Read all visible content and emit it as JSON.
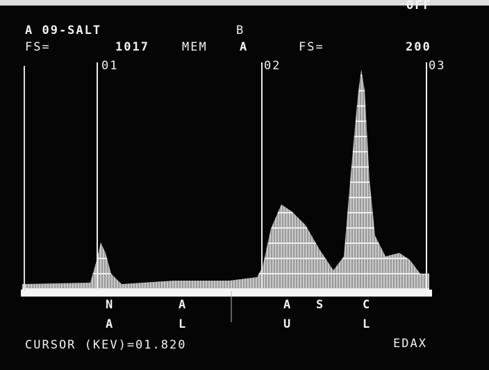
{
  "screen": {
    "status": {
      "right": "OFF"
    },
    "header": {
      "memory_a": "A 09-SALT",
      "memory_b": "B",
      "fs_label_1": "FS=",
      "fs_value_1": "1017",
      "mem_label": "MEM",
      "mem_value": "A",
      "fs_label_2": "FS=",
      "fs_value_2": "200"
    },
    "markers": [
      "01",
      "02",
      "03"
    ],
    "element_labels": [
      {
        "top": "N",
        "bottom": "A"
      },
      {
        "top": "A",
        "bottom": "L"
      },
      {
        "top": "A",
        "bottom": "U"
      },
      {
        "top": "S",
        "bottom": null
      },
      {
        "top": "C",
        "bottom": "L"
      }
    ],
    "footer": {
      "cursor": "CURSOR (KEV)=01.820",
      "brand": "EDAX"
    }
  }
}
